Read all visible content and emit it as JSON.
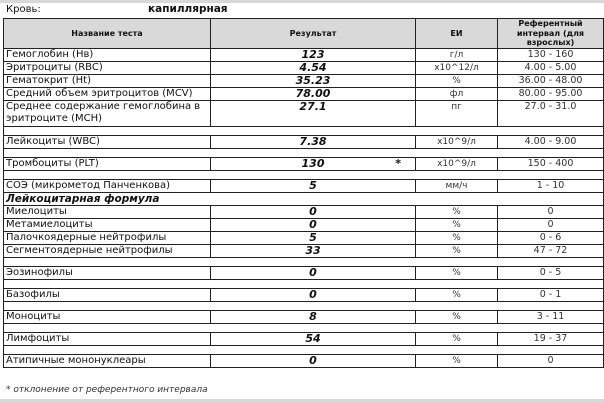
{
  "header": {
    "blood_label": "Кровь:",
    "blood_value": "капиллярная"
  },
  "columns": {
    "name": "Название теста",
    "result": "Результат",
    "unit": "ЕИ",
    "ref": "Референтный интервал (для взрослых)"
  },
  "rows": [
    {
      "type": "row",
      "name": "Гемоглобин (Нв)",
      "result": "123",
      "unit": "г/л",
      "ref": "130 - 160"
    },
    {
      "type": "row",
      "name": "Эритроциты (RBC)",
      "result": "4.54",
      "unit": "x10^12/л",
      "ref": "4.00 - 5.00"
    },
    {
      "type": "row",
      "name": "Гематокрит (Ht)",
      "result": "35.23",
      "unit": "%",
      "ref": "36.00 - 48.00"
    },
    {
      "type": "row",
      "name": "Средний объем эритроцитов (MCV)",
      "result": "78.00",
      "unit": "фл",
      "ref": "80.00 - 95.00"
    },
    {
      "type": "row2",
      "name": "Среднее содержание гемоглобина в эритроците (MCH)",
      "result": "27.1",
      "unit": "пг",
      "ref": "27.0 - 31.0"
    },
    {
      "type": "blank"
    },
    {
      "type": "row",
      "name": "Лейкоциты (WBC)",
      "result": "7.38",
      "unit": "x10^9/л",
      "ref": "4.00 - 9.00"
    },
    {
      "type": "blank"
    },
    {
      "type": "row",
      "name": "Тромбоциты (PLT)",
      "result": "130",
      "flag": "*",
      "unit": "x10^9/л",
      "ref": "150 - 400"
    },
    {
      "type": "blank"
    },
    {
      "type": "row",
      "name": "СОЭ (микрометод Панченкова)",
      "result": "5",
      "unit": "мм/ч",
      "ref": "1 - 10"
    },
    {
      "type": "section",
      "name": "Лейкоцитарная формула"
    },
    {
      "type": "row",
      "name": "Миелоциты",
      "result": "0",
      "unit": "%",
      "ref": "0"
    },
    {
      "type": "row",
      "name": "Метамиелоциты",
      "result": "0",
      "unit": "%",
      "ref": "0"
    },
    {
      "type": "row",
      "name": "Палочкоядерные нейтрофилы",
      "result": "5",
      "unit": "%",
      "ref": "0 - 6"
    },
    {
      "type": "row",
      "name": "Сегментоядерные нейтрофилы",
      "result": "33",
      "unit": "%",
      "ref": "47 - 72"
    },
    {
      "type": "blank"
    },
    {
      "type": "row",
      "name": "Эозинофилы",
      "result": "0",
      "unit": "%",
      "ref": "0 - 5"
    },
    {
      "type": "blank"
    },
    {
      "type": "row",
      "name": "Базофилы",
      "result": "0",
      "unit": "%",
      "ref": "0 - 1"
    },
    {
      "type": "blank"
    },
    {
      "type": "row",
      "name": "Моноциты",
      "result": "8",
      "unit": "%",
      "ref": "3 - 11"
    },
    {
      "type": "blank"
    },
    {
      "type": "row",
      "name": "Лимфоциты",
      "result": "54",
      "unit": "%",
      "ref": "19 - 37"
    },
    {
      "type": "blank"
    },
    {
      "type": "row",
      "name": "Атипичные мононуклеары",
      "result": "0",
      "unit": "%",
      "ref": "0"
    }
  ],
  "footnote": "* отклонение от референтного интервала"
}
